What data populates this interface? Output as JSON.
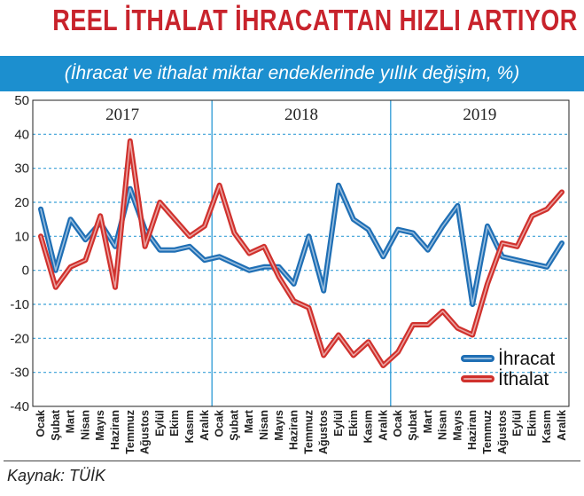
{
  "title": "REEL İTHALAT İHRACATTAN HIZLI ARTIYOR",
  "subtitle": "(İhracat ve ithalat miktar endeklerinde yıllık değişim, %)",
  "source": "Kaynak: TÜİK",
  "colors": {
    "title": "#c8232c",
    "band": "#1c8fcf",
    "ihracat": "#1f6fb5",
    "ithalat": "#d0312d",
    "grid": "#3aa0d8"
  },
  "chart_data": {
    "type": "line",
    "title": "REEL İTHALAT İHRACATTAN HIZLI ARTIYOR",
    "subtitle": "(İhracat ve ithalat miktar endeklerinde yıllık değişim, %)",
    "xlabel": "",
    "ylabel": "",
    "ylim": [
      -40,
      50
    ],
    "yticks": [
      50,
      40,
      30,
      20,
      10,
      0,
      -10,
      -20,
      -30,
      -40
    ],
    "years": [
      "2017",
      "2018",
      "2019"
    ],
    "categories": [
      "Ocak",
      "Şubat",
      "Mart",
      "Nisan",
      "Mayıs",
      "Haziran",
      "Temmuz",
      "Ağustos",
      "Eylül",
      "Ekim",
      "Kasım",
      "Aralık",
      "Ocak",
      "Şubat",
      "Mart",
      "Nisan",
      "Mayıs",
      "Haziran",
      "Temmuz",
      "Ağustos",
      "Eylül",
      "Ekim",
      "Kasım",
      "Aralık",
      "Ocak",
      "Şubat",
      "Mart",
      "Nisan",
      "Mayıs",
      "Haziran",
      "Temmuz",
      "Ağustos",
      "Eylül",
      "Ekim",
      "Kasım",
      "Aralık"
    ],
    "series": [
      {
        "name": "İhracat",
        "color": "#1f6fb5",
        "values": [
          18,
          0,
          15,
          9,
          14,
          7,
          24,
          12,
          6,
          6,
          7,
          3,
          4,
          2,
          0,
          1,
          1,
          -4,
          10,
          -6,
          25,
          15,
          12,
          4,
          12,
          11,
          6,
          13,
          19,
          -10,
          13,
          4,
          3,
          2,
          1,
          8
        ]
      },
      {
        "name": "İthalat",
        "color": "#d0312d",
        "values": [
          10,
          -5,
          1,
          3,
          16,
          -5,
          38,
          7,
          20,
          15,
          10,
          13,
          25,
          11,
          5,
          7,
          -2,
          -9,
          -11,
          -25,
          -19,
          -25,
          -21,
          -28,
          -24,
          -16,
          -16,
          -12,
          -17,
          -19,
          -4,
          8,
          7,
          16,
          18,
          23
        ]
      }
    ],
    "legend_position": "bottom-right",
    "grid": true
  }
}
